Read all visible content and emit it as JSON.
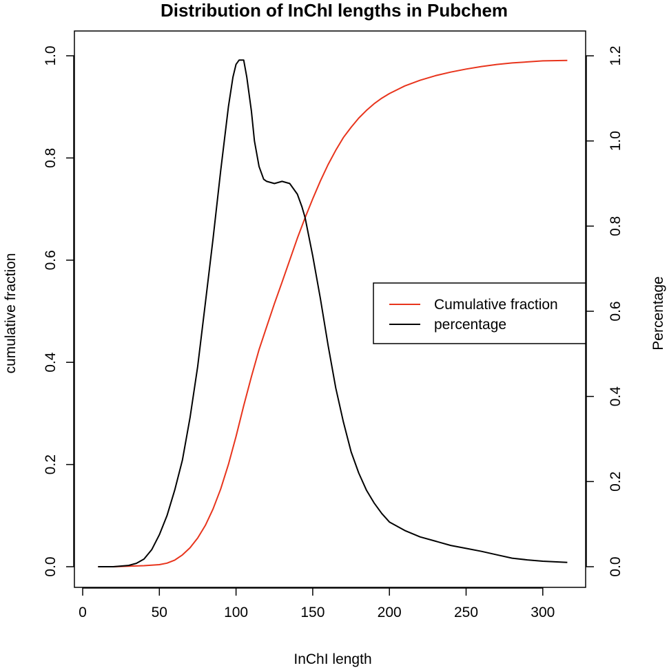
{
  "chart_data": {
    "type": "line",
    "title": "Distribution of InChI lengths in Pubchem",
    "xlabel": "InChI length",
    "ylabel": "cumulative fraction",
    "ylabel_right": "Percentage",
    "xlim": [
      0,
      330
    ],
    "ylim": [
      0,
      1.0
    ],
    "ylim_right": [
      0,
      1.2
    ],
    "x_ticks": [
      0,
      50,
      100,
      150,
      200,
      250,
      300
    ],
    "y_ticks": [
      0.0,
      0.2,
      0.4,
      0.6,
      0.8,
      1.0
    ],
    "y_ticks_right": [
      0.0,
      0.2,
      0.4,
      0.6,
      0.8,
      1.0,
      1.2
    ],
    "x_tick_labels": [
      "0",
      "50",
      "100",
      "150",
      "200",
      "250",
      "300"
    ],
    "y_tick_labels": [
      "0.0",
      "0.2",
      "0.4",
      "0.6",
      "0.8",
      "1.0"
    ],
    "y_tick_labels_right": [
      "0.0",
      "0.2",
      "0.4",
      "0.6",
      "0.8",
      "1.0",
      "1.2"
    ],
    "grid": false,
    "legend": {
      "placement": "right",
      "entries": [
        {
          "label": "Cumulative fraction",
          "color": "#e8341c"
        },
        {
          "label": "percentage",
          "color": "#000000"
        }
      ]
    },
    "series": [
      {
        "name": "Cumulative fraction",
        "axis": "left",
        "color": "#e8341c",
        "x": [
          10,
          20,
          30,
          40,
          50,
          55,
          60,
          65,
          70,
          75,
          80,
          85,
          90,
          95,
          100,
          105,
          110,
          115,
          120,
          125,
          130,
          135,
          140,
          145,
          150,
          155,
          160,
          165,
          170,
          175,
          180,
          185,
          190,
          195,
          200,
          210,
          220,
          230,
          240,
          250,
          260,
          270,
          280,
          290,
          300,
          316
        ],
        "y": [
          0.0,
          0.0,
          0.001,
          0.002,
          0.004,
          0.007,
          0.013,
          0.023,
          0.037,
          0.056,
          0.081,
          0.113,
          0.152,
          0.2,
          0.255,
          0.315,
          0.372,
          0.425,
          0.47,
          0.515,
          0.557,
          0.6,
          0.643,
          0.683,
          0.72,
          0.755,
          0.787,
          0.815,
          0.84,
          0.86,
          0.878,
          0.893,
          0.906,
          0.917,
          0.926,
          0.941,
          0.952,
          0.961,
          0.968,
          0.974,
          0.979,
          0.983,
          0.986,
          0.988,
          0.99,
          0.991
        ]
      },
      {
        "name": "percentage",
        "axis": "right",
        "color": "#000000",
        "x": [
          10,
          20,
          30,
          35,
          40,
          45,
          50,
          55,
          60,
          65,
          70,
          75,
          80,
          85,
          90,
          95,
          98,
          100,
          102,
          105,
          107,
          110,
          112,
          115,
          118,
          120,
          125,
          130,
          135,
          140,
          143,
          145,
          150,
          155,
          160,
          165,
          170,
          175,
          180,
          185,
          190,
          195,
          200,
          210,
          220,
          230,
          240,
          250,
          260,
          270,
          280,
          290,
          300,
          316
        ],
        "y": [
          0.0,
          0.0,
          0.003,
          0.008,
          0.018,
          0.04,
          0.075,
          0.12,
          0.18,
          0.25,
          0.35,
          0.47,
          0.62,
          0.77,
          0.93,
          1.08,
          1.15,
          1.18,
          1.19,
          1.19,
          1.15,
          1.07,
          1.0,
          0.94,
          0.91,
          0.905,
          0.9,
          0.905,
          0.9,
          0.875,
          0.845,
          0.82,
          0.73,
          0.63,
          0.52,
          0.42,
          0.34,
          0.27,
          0.22,
          0.18,
          0.15,
          0.125,
          0.105,
          0.085,
          0.07,
          0.06,
          0.05,
          0.043,
          0.036,
          0.028,
          0.02,
          0.016,
          0.013,
          0.01
        ]
      }
    ]
  }
}
